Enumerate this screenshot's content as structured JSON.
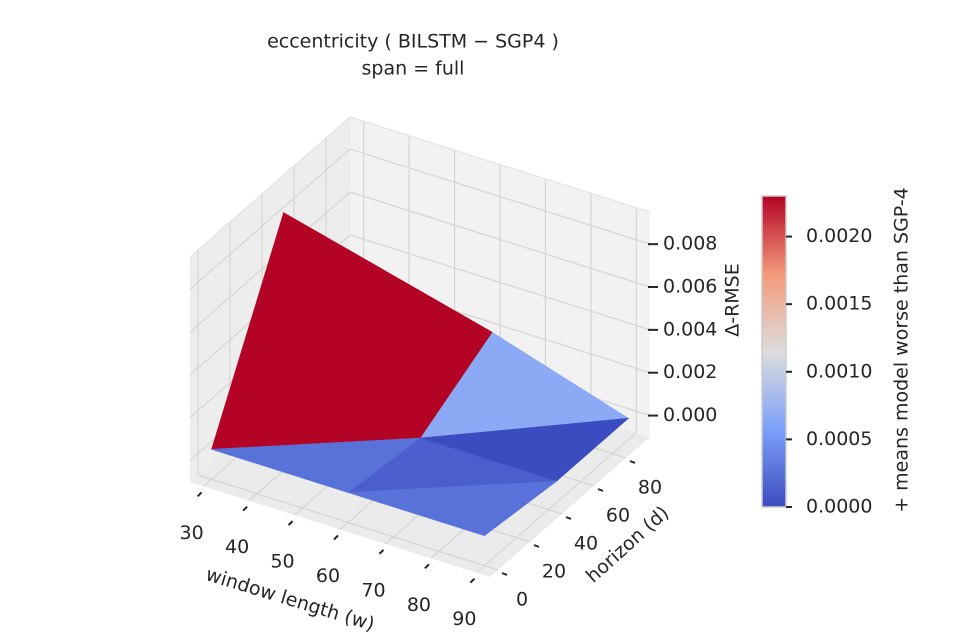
{
  "chart_data": {
    "type": "surface3d",
    "title": "eccentricity  ( BILSTM − SGP4 )",
    "subtitle": "span = full",
    "x_label": "window length (w)",
    "y_label": "horizon (d)",
    "z_label": "Δ-RMSE",
    "x": [
      30,
      60,
      90
    ],
    "y": [
      0,
      45,
      90
    ],
    "z": [
      [
        0.0004,
        0.0004,
        0.0004
      ],
      [
        0.0085,
        0.0,
        0.0
      ],
      [
        0.0,
        0.002,
        0.0
      ]
    ],
    "xlim": [
      27,
      93
    ],
    "xticks": [
      30,
      40,
      50,
      60,
      70,
      80,
      90
    ],
    "ylim": [
      -5,
      95
    ],
    "yticks": [
      0,
      20,
      40,
      60,
      80
    ],
    "zlim": [
      -0.001,
      0.0095
    ],
    "zticks": [
      {
        "value": 0,
        "label": "0.000"
      },
      {
        "value": 0.002,
        "label": "0.002"
      },
      {
        "value": 0.004,
        "label": "0.004"
      },
      {
        "value": 0.006,
        "label": "0.006"
      },
      {
        "value": 0.008,
        "label": "0.008"
      }
    ],
    "colormap": "coolwarm",
    "colorbar": {
      "label": "+ means model worse than SGP-4",
      "clim": [
        0,
        0.0023
      ],
      "ticks": [
        {
          "value": 0,
          "label": "0.0000"
        },
        {
          "value": 0.0005,
          "label": "0.0005"
        },
        {
          "value": 0.001,
          "label": "0.0010"
        },
        {
          "value": 0.0015,
          "label": "0.0015"
        },
        {
          "value": 0.002,
          "label": "0.0020"
        }
      ]
    }
  }
}
